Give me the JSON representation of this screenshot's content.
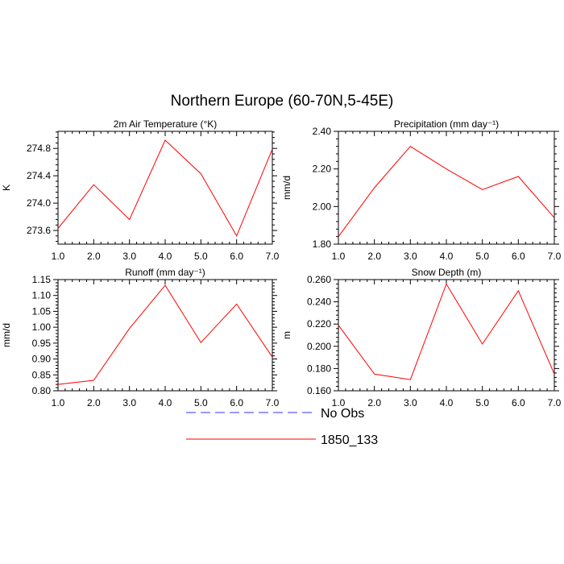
{
  "title": "Northern Europe (60-70N,5-45E)",
  "chart_data": [
    {
      "type": "line",
      "title": "2m Air Temperature (°K)",
      "ylabel": "K",
      "x": [
        1,
        2,
        3,
        4,
        5,
        6,
        7
      ],
      "xticks": [
        "1.0",
        "2.0",
        "3.0",
        "4.0",
        "5.0",
        "6.0",
        "7.0"
      ],
      "xlim": [
        1,
        7
      ],
      "ylim": [
        273.4,
        275.05
      ],
      "yticks": [
        273.6,
        274.0,
        274.4,
        274.8
      ],
      "ytick_labels": [
        "273.6",
        "274.0",
        "274.4",
        "274.8"
      ],
      "series": [
        {
          "name": "1850_133",
          "color": "#ff0000",
          "values": [
            273.63,
            274.27,
            273.76,
            274.92,
            274.43,
            273.52,
            274.79
          ]
        }
      ]
    },
    {
      "type": "line",
      "title": "Precipitation (mm day⁻¹)",
      "ylabel": "mm/d",
      "x": [
        1,
        2,
        3,
        4,
        5,
        6,
        7
      ],
      "xticks": [
        "1.0",
        "2.0",
        "3.0",
        "4.0",
        "5.0",
        "6.0",
        "7.0"
      ],
      "xlim": [
        1,
        7
      ],
      "ylim": [
        1.8,
        2.4
      ],
      "yticks": [
        1.8,
        2.0,
        2.2,
        2.4
      ],
      "ytick_labels": [
        "1.80",
        "2.00",
        "2.20",
        "2.40"
      ],
      "series": [
        {
          "name": "1850_133",
          "color": "#ff0000",
          "values": [
            1.84,
            2.1,
            2.32,
            2.2,
            2.09,
            2.16,
            1.94
          ]
        }
      ]
    },
    {
      "type": "line",
      "title": "Runoff (mm day⁻¹)",
      "ylabel": "mm/d",
      "x": [
        1,
        2,
        3,
        4,
        5,
        6,
        7
      ],
      "xticks": [
        "1.0",
        "2.0",
        "3.0",
        "4.0",
        "5.0",
        "6.0",
        "7.0"
      ],
      "xlim": [
        1,
        7
      ],
      "ylim": [
        0.8,
        1.15
      ],
      "yticks": [
        0.8,
        0.85,
        0.9,
        0.95,
        1.0,
        1.05,
        1.1,
        1.15
      ],
      "ytick_labels": [
        "0.80",
        "0.85",
        "0.90",
        "0.95",
        "1.00",
        "1.05",
        "1.10",
        "1.15"
      ],
      "series": [
        {
          "name": "1850_133",
          "color": "#ff0000",
          "values": [
            0.82,
            0.833,
            0.996,
            1.132,
            0.952,
            1.073,
            0.906
          ]
        }
      ]
    },
    {
      "type": "line",
      "title": "Snow Depth (m)",
      "ylabel": "m",
      "x": [
        1,
        2,
        3,
        4,
        5,
        6,
        7
      ],
      "xticks": [
        "1.0",
        "2.0",
        "3.0",
        "4.0",
        "5.0",
        "6.0",
        "7.0"
      ],
      "xlim": [
        1,
        7
      ],
      "ylim": [
        0.16,
        0.26
      ],
      "yticks": [
        0.16,
        0.18,
        0.2,
        0.22,
        0.24,
        0.26
      ],
      "ytick_labels": [
        "0.160",
        "0.180",
        "0.200",
        "0.220",
        "0.240",
        "0.260"
      ],
      "series": [
        {
          "name": "1850_133",
          "color": "#ff0000",
          "values": [
            0.219,
            0.175,
            0.17,
            0.256,
            0.202,
            0.25,
            0.175
          ]
        }
      ]
    }
  ],
  "legend": [
    {
      "label": "No Obs",
      "color": "#3333ff",
      "style": "dashed"
    },
    {
      "label": "1850_133",
      "color": "#ff0000",
      "style": "solid"
    }
  ]
}
